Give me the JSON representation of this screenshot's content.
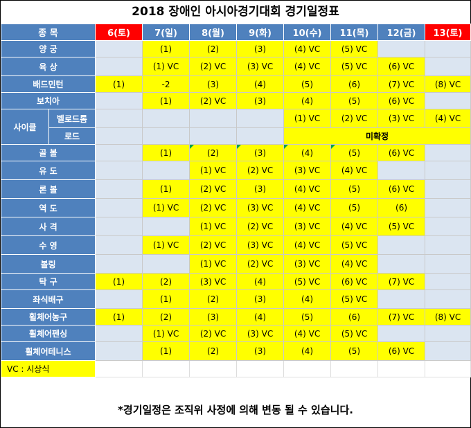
{
  "title": "2018 장애인 아시아경기대회 경기일정표",
  "header": {
    "sport_label": "종 목",
    "days": [
      "6(토)",
      "7(일)",
      "8(월)",
      "9(화)",
      "10(수)",
      "11(목)",
      "12(금)",
      "13(토)"
    ]
  },
  "rows": {
    "archery": {
      "name": "양 궁",
      "cells": [
        "",
        "(1)",
        "(2)",
        "(3)",
        "(4) VC",
        "(5) VC",
        "",
        ""
      ]
    },
    "athletics": {
      "name": "육 상",
      "cells": [
        "",
        "(1) VC",
        "(2) VC",
        "(3) VC",
        "(4) VC",
        "(5) VC",
        "(6) VC",
        ""
      ]
    },
    "badminton": {
      "name": "배드민턴",
      "cells": [
        "(1)",
        "-2",
        "(3)",
        "(4)",
        "(5)",
        "(6)",
        "(7) VC",
        "(8) VC"
      ]
    },
    "boccia": {
      "name": "보치아",
      "cells": [
        "",
        "(1)",
        "(2) VC",
        "(3)",
        "(4)",
        "(5)",
        "(6) VC",
        ""
      ]
    },
    "cycling": {
      "name": "사이클"
    },
    "velodrome": {
      "name": "벨로드롬",
      "cells": [
        "",
        "",
        "",
        "",
        "(1) VC",
        "(2) VC",
        "(3) VC",
        "(4) VC"
      ]
    },
    "road": {
      "name": "로드",
      "cells": [
        "",
        "",
        "",
        "",
        "미확정"
      ]
    },
    "goalball": {
      "name": "골 볼",
      "cells": [
        "",
        "(1)",
        "(2)",
        "(3)",
        "(4)",
        "(5)",
        "(6) VC",
        ""
      ]
    },
    "judo": {
      "name": "유 도",
      "cells": [
        "",
        "",
        "(1) VC",
        "(2) VC",
        "(3) VC",
        "(4) VC",
        "",
        ""
      ]
    },
    "lawnbowls": {
      "name": "론 볼",
      "cells": [
        "",
        "(1)",
        "(2) VC",
        "(3)",
        "(4) VC",
        "(5)",
        "(6) VC",
        ""
      ]
    },
    "powerlifting": {
      "name": "역 도",
      "cells": [
        "",
        "(1) VC",
        "(2) VC",
        "(3) VC",
        "(4) VC",
        "(5)",
        "(6)",
        ""
      ]
    },
    "shooting": {
      "name": "사 격",
      "cells": [
        "",
        "",
        "(1) VC",
        "(2) VC",
        "(3) VC",
        "(4) VC",
        "(5) VC",
        ""
      ]
    },
    "swimming": {
      "name": "수 영",
      "cells": [
        "",
        "(1) VC",
        "(2) VC",
        "(3) VC",
        "(4) VC",
        "(5) VC",
        "",
        ""
      ]
    },
    "bowling": {
      "name": "볼링",
      "cells": [
        "",
        "",
        "(1) VC",
        "(2) VC",
        "(3) VC",
        "(4) VC",
        "",
        ""
      ]
    },
    "tabletennis": {
      "name": "탁 구",
      "cells": [
        "(1)",
        "(2)",
        "(3) VC",
        "(4)",
        "(5) VC",
        "(6) VC",
        "(7) VC",
        ""
      ]
    },
    "sittingvolley": {
      "name": "좌식배구",
      "cells": [
        "",
        "(1)",
        "(2)",
        "(3)",
        "(4)",
        "(5) VC",
        "",
        ""
      ]
    },
    "wcbasketball": {
      "name": "휠체어농구",
      "cells": [
        "(1)",
        "(2)",
        "(3)",
        "(4)",
        "(5)",
        "(6)",
        "(7) VC",
        "(8) VC"
      ]
    },
    "wcfencing": {
      "name": "휠체어펜싱",
      "cells": [
        "",
        "(1) VC",
        "(2) VC",
        "(3) VC",
        "(4) VC",
        "(5) VC",
        "",
        ""
      ]
    },
    "wctennis": {
      "name": "휠체어테니스",
      "cells": [
        "",
        "(1)",
        "(2)",
        "(3)",
        "(4)",
        "(5)",
        "(6) VC",
        ""
      ]
    }
  },
  "legend": "VC : 시상식",
  "note": "*경기일정은 조직위 사정에 의해 변동 될 수 있습니다.",
  "colors": {
    "header_blue": "#4f81bd",
    "highlight_yellow": "#ffff00",
    "weekend_red": "#ff0000",
    "empty_gray": "#dbe5f1"
  }
}
